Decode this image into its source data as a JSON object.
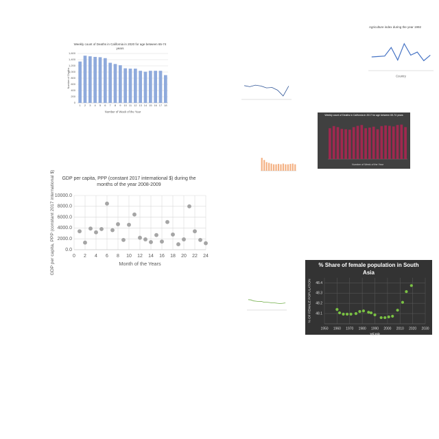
{
  "chart_data": [
    {
      "type": "bar",
      "title": "Weekly count of Deaths in California in 2020 for age between 65-74 years",
      "xlabel": "Number of Week of the Year",
      "ylabel": "Number of Deaths",
      "categories": [
        "1",
        "2",
        "3",
        "4",
        "5",
        "6",
        "7",
        "8",
        "9",
        "10",
        "11",
        "12",
        "13",
        "14",
        "15",
        "16",
        "17",
        "18"
      ],
      "values": [
        1340,
        1530,
        1510,
        1490,
        1480,
        1450,
        1300,
        1260,
        1220,
        1120,
        1110,
        1110,
        1040,
        1010,
        1040,
        1040,
        1040,
        900
      ],
      "color": "#8faadc",
      "ylim": [
        0,
        1600
      ],
      "yticks": [
        0,
        200,
        400,
        600,
        800,
        {
          "value": 1000,
          "label": "1,000"
        },
        {
          "value": 1200,
          "label": "1,200"
        },
        {
          "value": 1400,
          "label": "1,400"
        },
        {
          "value": 1600,
          "label": "1,600"
        }
      ],
      "grid": true
    },
    {
      "type": "line",
      "title": "Agriculture index during the year 1992",
      "xlabel": "Country",
      "values": [
        62,
        64,
        66,
        105,
        48,
        122,
        70,
        84,
        45,
        70
      ],
      "color": "#4472c4",
      "ylim": [
        0,
        180
      ]
    },
    {
      "type": "line",
      "values": [
        60,
        55,
        62,
        58,
        50,
        52,
        40,
        15,
        58
      ],
      "color": "#2f5597",
      "ylim": [
        0,
        80
      ]
    },
    {
      "type": "bar",
      "title": "Weekly count of Deaths in California in 2017 for age between 65-74 years",
      "xlabel": "Number of Week of the Year",
      "values": [
        1450,
        1550,
        1500,
        1420,
        1400,
        1380,
        1500,
        1560,
        1600,
        1450,
        1480,
        1520,
        1400,
        1550,
        1580,
        1560,
        1530,
        1600,
        1620,
        1500
      ],
      "color": "#a0284f",
      "ylim": [
        0,
        1800
      ],
      "background": "#404040"
    },
    {
      "type": "bar",
      "values": [
        90,
        75,
        60,
        55,
        50,
        45,
        45,
        48,
        45,
        50,
        45,
        45,
        48,
        50,
        45
      ],
      "color": "#f4b183",
      "ylim": [
        0,
        100
      ]
    },
    {
      "type": "scatter",
      "title": "GDP per capita, PPP (constant 2017 international $) during the months of the year 2008-2009",
      "xlabel": "Month of the Years",
      "ylabel": "GDP per capita, PPP (constant 2017 international $)",
      "x": [
        1,
        2,
        3,
        4,
        5,
        6,
        7,
        8,
        9,
        10,
        11,
        12,
        13,
        14,
        15,
        16,
        17,
        18,
        19,
        20,
        21,
        22,
        23,
        24
      ],
      "values": [
        3400,
        1300,
        3900,
        3200,
        3800,
        8500,
        3600,
        4700,
        1800,
        4600,
        6500,
        2200,
        1900,
        1400,
        2700,
        1500,
        5100,
        2800,
        1000,
        1900,
        8000,
        3400,
        1800,
        1200
      ],
      "color": "#a5a5a5",
      "xlim": [
        0,
        24
      ],
      "xticks": [
        0,
        2,
        4,
        6,
        8,
        10,
        12,
        14,
        16,
        18,
        20,
        22,
        24
      ],
      "ylim": [
        0,
        10000
      ],
      "yticks": [
        {
          "value": 0,
          "label": "0.0"
        },
        {
          "value": 2000,
          "label": "2000.0"
        },
        {
          "value": 4000,
          "label": "4000.0"
        },
        {
          "value": 6000,
          "label": "6000.0"
        },
        {
          "value": 8000,
          "label": "8000.0"
        },
        {
          "value": 10000,
          "label": "10000.0"
        }
      ],
      "grid": true
    },
    {
      "type": "line",
      "values": [
        80,
        78,
        70,
        68,
        65,
        66,
        60,
        60,
        58,
        55,
        55,
        52,
        50,
        52,
        55
      ],
      "color": "#70ad47",
      "ylim": [
        0,
        100
      ]
    },
    {
      "type": "scatter",
      "title": "% Share of female population in South Asia",
      "xlabel": "YEAR",
      "ylabel": "% OF FEMALE POPULATION",
      "x": [
        1960,
        1962,
        1965,
        1968,
        1971,
        1975,
        1978,
        1981,
        1985,
        1987,
        1990,
        1995,
        1998,
        2001,
        2004,
        2008,
        2012,
        2015,
        2019
      ],
      "values": [
        48.14,
        48.107,
        48.094,
        48.094,
        48.094,
        48.1,
        48.12,
        48.126,
        48.113,
        48.107,
        48.087,
        48.06,
        48.06,
        48.067,
        48.074,
        48.133,
        48.21,
        48.315,
        48.374
      ],
      "color": "#7ac143",
      "xlim": [
        1950,
        2030
      ],
      "xticks": [
        1950,
        1960,
        1970,
        1980,
        1990,
        2000,
        2010,
        2020,
        2030
      ],
      "ylim": [
        48.0,
        48.45
      ],
      "yticks": [
        48.1,
        48.2,
        48.3,
        48.4
      ],
      "grid": true,
      "background": "#333333"
    }
  ]
}
